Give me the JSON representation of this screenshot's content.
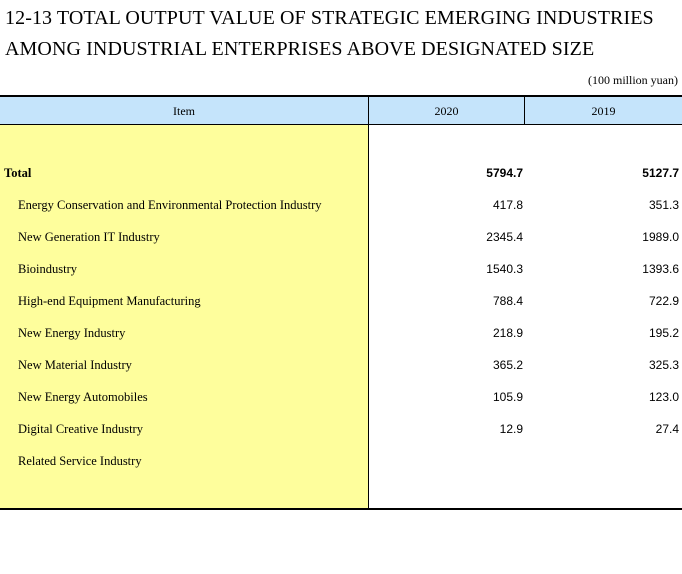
{
  "title": {
    "line1": "12-13  TOTAL OUTPUT VALUE OF STRATEGIC EMERGING INDUSTRIES",
    "line2": "AMONG INDUSTRIAL ENTERPRISES ABOVE DESIGNATED SIZE"
  },
  "unit": "(100 million yuan)",
  "table": {
    "columns": [
      "Item",
      "2020",
      "2019"
    ],
    "rows": [
      {
        "label": "Total",
        "v2020": "5794.7",
        "v2019": "5127.7"
      },
      {
        "label": "Energy Conservation and Environmental Protection Industry",
        "v2020": "417.8",
        "v2019": "351.3"
      },
      {
        "label": "New Generation IT Industry",
        "v2020": "2345.4",
        "v2019": "1989.0"
      },
      {
        "label": "Bioindustry",
        "v2020": "1540.3",
        "v2019": "1393.6"
      },
      {
        "label": "High-end Equipment Manufacturing",
        "v2020": "788.4",
        "v2019": "722.9"
      },
      {
        "label": "New Energy Industry",
        "v2020": "218.9",
        "v2019": "195.2"
      },
      {
        "label": "New Material Industry",
        "v2020": "365.2",
        "v2019": "325.3"
      },
      {
        "label": "New Energy Automobiles",
        "v2020": "105.9",
        "v2019": "123.0"
      },
      {
        "label": "Digital Creative Industry",
        "v2020": "12.9",
        "v2019": "27.4"
      },
      {
        "label": "Related Service Industry",
        "v2020": "",
        "v2019": ""
      }
    ]
  },
  "colors": {
    "header_bg": "#c5e4fb",
    "item_column_bg": "#fefe9c"
  }
}
